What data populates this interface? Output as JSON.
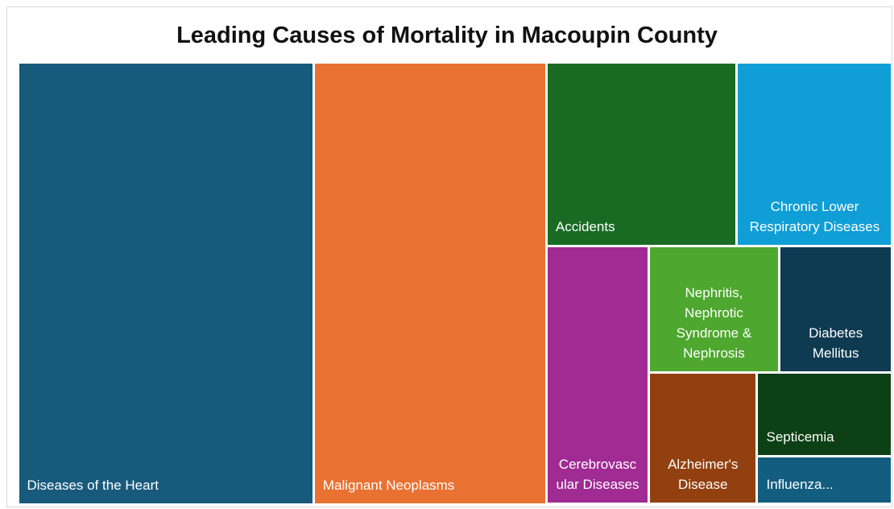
{
  "chart_data": {
    "type": "treemap",
    "title": "Leading Causes of Mortality in Macoupin County",
    "categories": [
      "Diseases of the Heart",
      "Malignant Neoplasms",
      "Accidents",
      "Chronic Lower Respiratory Diseases",
      "Cerebrovascular Diseases",
      "Nephritis, Nephrotic Syndrome & Nephrosis",
      "Diabetes Mellitus",
      "Alzheimer's Disease",
      "Septicemia",
      "Influenza..."
    ],
    "values": [
      183,
      144,
      49,
      40,
      37,
      23,
      20,
      20,
      16,
      9
    ],
    "colors": [
      "#175a7c",
      "#e97132",
      "#196b24",
      "#0f9ed5",
      "#a02b93",
      "#4ea72e",
      "#0e3a52",
      "#924010",
      "#0e4016",
      "#135e80"
    ]
  }
}
